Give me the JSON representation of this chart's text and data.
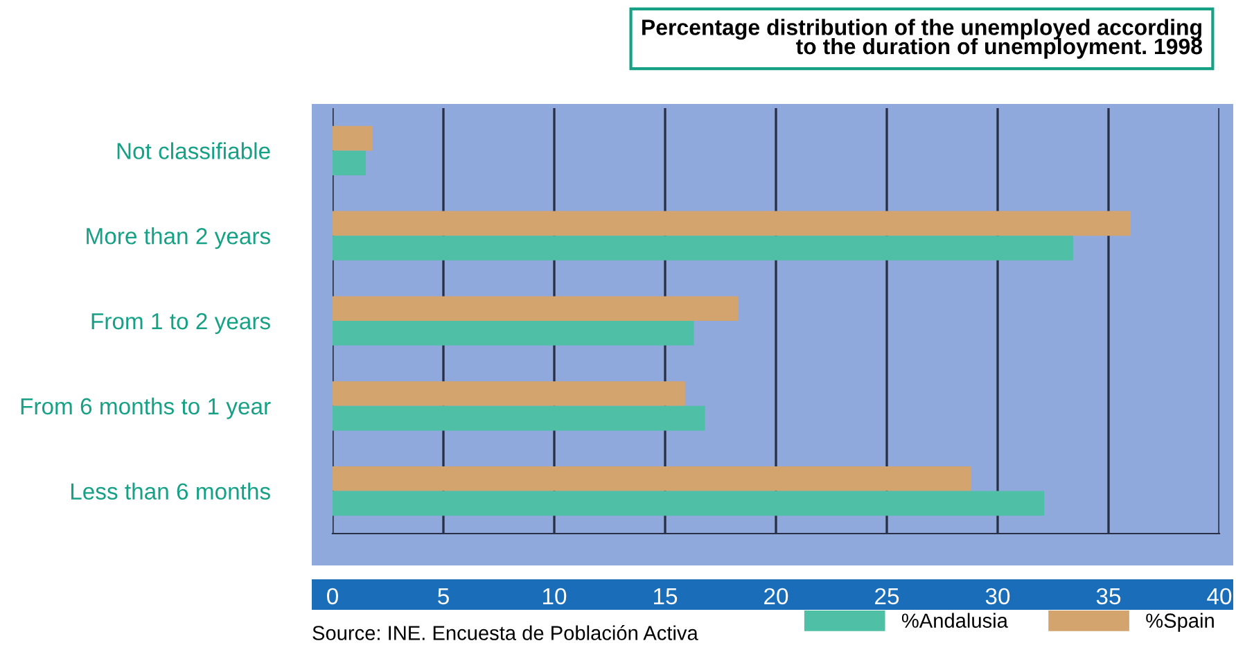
{
  "chart_data": {
    "type": "bar",
    "orientation": "horizontal",
    "title": "Percentage distribution of the unemployed according\nto the duration of unemployment. 1998",
    "categories": [
      "Not classifiable",
      "More than 2 years",
      "From 1 to 2 years",
      "From 6 months to 1 year",
      "Less than 6 months"
    ],
    "series": [
      {
        "name": "%Spain",
        "color": "#d4a46e",
        "values": [
          1.8,
          36.0,
          18.3,
          15.9,
          28.8
        ]
      },
      {
        "name": "%Andalusia",
        "color": "#4fbfa5",
        "values": [
          1.5,
          33.4,
          16.3,
          16.8,
          32.1
        ]
      }
    ],
    "xlim": [
      0,
      40
    ],
    "xticks": [
      0,
      5,
      10,
      15,
      20,
      25,
      30,
      35,
      40
    ],
    "grid": "x",
    "legend": "bottom right",
    "annotations": [
      "Source: INE. Encuesta de Población Activa"
    ]
  }
}
